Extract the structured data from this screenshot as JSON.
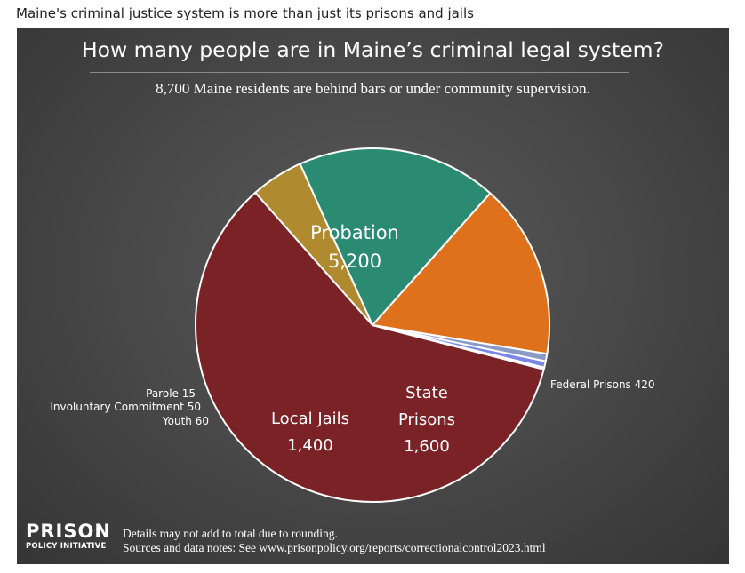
{
  "page": {
    "heading": "Maine's criminal justice system is more than just its prisons and jails"
  },
  "chart": {
    "title": "How many people are in Maine’s criminal legal system?",
    "subtitle": "8,700 Maine residents are behind bars or under community supervision.",
    "logo_line1": "PRISON",
    "logo_line2": "POLICY INITIATIVE",
    "note_line1": "Details may not add to total due to rounding.",
    "note_line2": "Sources and data notes: See www.prisonpolicy.org/reports/correctionalcontrol2023.html"
  },
  "chart_data": {
    "type": "pie",
    "title": "How many people are in Maine’s criminal legal system?",
    "subtitle": "8,700 Maine residents are behind bars or under community supervision.",
    "total": 8700,
    "slices": [
      {
        "name": "Probation",
        "value": 5200,
        "label_lines": [
          "Probation",
          "5,200"
        ],
        "color": "#7b2226"
      },
      {
        "name": "Federal Prisons",
        "value": 420,
        "label_lines": [
          "Federal Prisons 420"
        ],
        "color": "#b08a2e"
      },
      {
        "name": "State Prisons",
        "value": 1600,
        "label_lines": [
          "State",
          "Prisons",
          "1,600"
        ],
        "color": "#2a8a72"
      },
      {
        "name": "Local Jails",
        "value": 1400,
        "label_lines": [
          "Local Jails",
          "1,400"
        ],
        "color": "#e0711c"
      },
      {
        "name": "Youth",
        "value": 60,
        "label_lines": [
          "Youth 60"
        ],
        "color": "#8a9ac8"
      },
      {
        "name": "Involuntary Commitment",
        "value": 50,
        "label_lines": [
          "Involuntary Commitment 50"
        ],
        "color": "#7a86e8"
      },
      {
        "name": "Parole",
        "value": 15,
        "label_lines": [
          "Parole 15"
        ],
        "color": "#a8b4f0"
      }
    ],
    "legend": "none"
  }
}
